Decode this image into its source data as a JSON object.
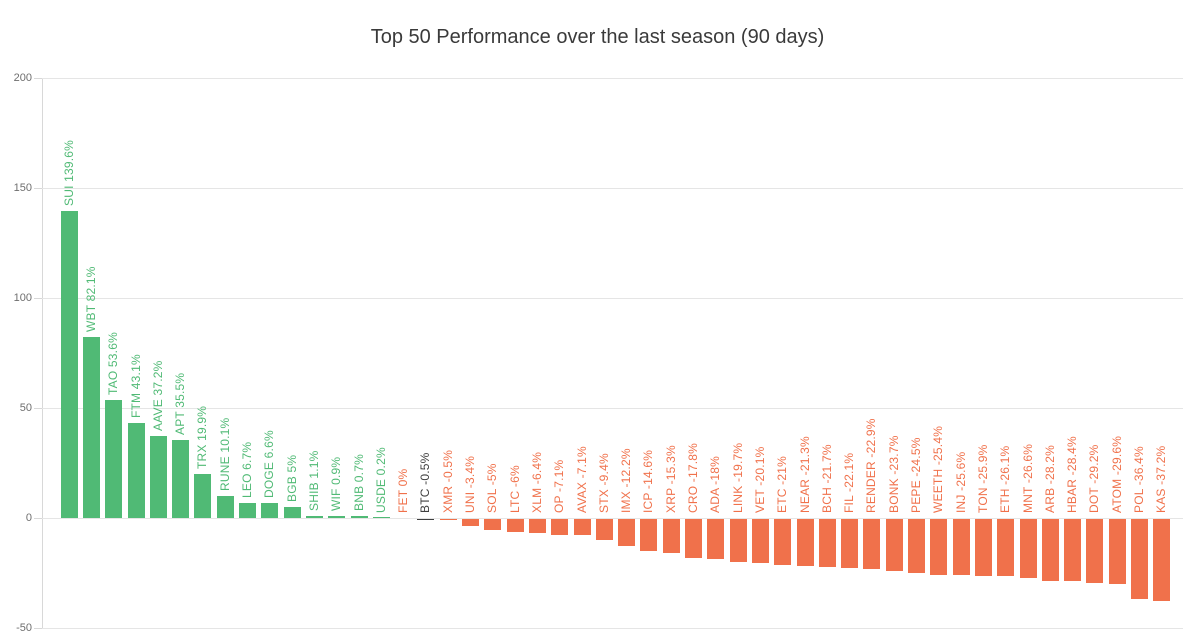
{
  "colors": {
    "positive": "#50ba75",
    "negative": "#f0714b",
    "btc": "#3f3f3f",
    "grid": "#e5e5e5",
    "axis": "#d8d8d8",
    "tick_text": "#6e6e6e",
    "title_text": "#3a3a3a"
  },
  "chart_data": {
    "type": "bar",
    "title": "Top 50 Performance over the last season (90 days)",
    "xlabel": "",
    "ylabel": "",
    "ylim": [
      -50,
      200
    ],
    "yticks": [
      200,
      150,
      100,
      50,
      0,
      -50
    ],
    "grid": true,
    "legend": "none",
    "value_unit": "%",
    "items": [
      {
        "symbol": "SUI",
        "value": 139.6,
        "label": "SUI 139.6%",
        "color": "positive"
      },
      {
        "symbol": "WBT",
        "value": 82.1,
        "label": "WBT 82.1%",
        "color": "positive"
      },
      {
        "symbol": "TAO",
        "value": 53.6,
        "label": "TAO 53.6%",
        "color": "positive"
      },
      {
        "symbol": "FTM",
        "value": 43.1,
        "label": "FTM 43.1%",
        "color": "positive"
      },
      {
        "symbol": "AAVE",
        "value": 37.2,
        "label": "AAVE 37.2%",
        "color": "positive"
      },
      {
        "symbol": "APT",
        "value": 35.5,
        "label": "APT 35.5%",
        "color": "positive"
      },
      {
        "symbol": "TRX",
        "value": 19.9,
        "label": "TRX 19.9%",
        "color": "positive"
      },
      {
        "symbol": "RUNE",
        "value": 10.1,
        "label": "RUNE 10.1%",
        "color": "positive"
      },
      {
        "symbol": "LEO",
        "value": 6.7,
        "label": "LEO 6.7%",
        "color": "positive"
      },
      {
        "symbol": "DOGE",
        "value": 6.6,
        "label": "DOGE 6.6%",
        "color": "positive"
      },
      {
        "symbol": "BGB",
        "value": 5,
        "label": "BGB 5%",
        "color": "positive"
      },
      {
        "symbol": "SHIB",
        "value": 1.1,
        "label": "SHIB 1.1%",
        "color": "positive"
      },
      {
        "symbol": "WIF",
        "value": 0.9,
        "label": "WIF 0.9%",
        "color": "positive"
      },
      {
        "symbol": "BNB",
        "value": 0.7,
        "label": "BNB 0.7%",
        "color": "positive"
      },
      {
        "symbol": "USDE",
        "value": 0.2,
        "label": "USDE 0.2%",
        "color": "positive"
      },
      {
        "symbol": "FET",
        "value": 0,
        "label": "FET 0%",
        "color": "negative"
      },
      {
        "symbol": "BTC",
        "value": -0.5,
        "label": "BTC -0.5%",
        "color": "btc"
      },
      {
        "symbol": "XMR",
        "value": -0.5,
        "label": "XMR -0.5%",
        "color": "negative"
      },
      {
        "symbol": "UNI",
        "value": -3.4,
        "label": "UNI -3.4%",
        "color": "negative"
      },
      {
        "symbol": "SOL",
        "value": -5,
        "label": "SOL -5%",
        "color": "negative"
      },
      {
        "symbol": "LTC",
        "value": -6,
        "label": "LTC -6%",
        "color": "negative"
      },
      {
        "symbol": "XLM",
        "value": -6.4,
        "label": "XLM -6.4%",
        "color": "negative"
      },
      {
        "symbol": "OP",
        "value": -7.1,
        "label": "OP -7.1%",
        "color": "negative"
      },
      {
        "symbol": "AVAX",
        "value": -7.1,
        "label": "AVAX -7.1%",
        "color": "negative"
      },
      {
        "symbol": "STX",
        "value": -9.4,
        "label": "STX -9.4%",
        "color": "negative"
      },
      {
        "symbol": "IMX",
        "value": -12.2,
        "label": "IMX -12.2%",
        "color": "negative"
      },
      {
        "symbol": "ICP",
        "value": -14.6,
        "label": "ICP -14.6%",
        "color": "negative"
      },
      {
        "symbol": "XRP",
        "value": -15.3,
        "label": "XRP -15.3%",
        "color": "negative"
      },
      {
        "symbol": "CRO",
        "value": -17.8,
        "label": "CRO -17.8%",
        "color": "negative"
      },
      {
        "symbol": "ADA",
        "value": -18,
        "label": "ADA -18%",
        "color": "negative"
      },
      {
        "symbol": "LINK",
        "value": -19.7,
        "label": "LINK -19.7%",
        "color": "negative"
      },
      {
        "symbol": "VET",
        "value": -20.1,
        "label": "VET -20.1%",
        "color": "negative"
      },
      {
        "symbol": "ETC",
        "value": -21,
        "label": "ETC -21%",
        "color": "negative"
      },
      {
        "symbol": "NEAR",
        "value": -21.3,
        "label": "NEAR -21.3%",
        "color": "negative"
      },
      {
        "symbol": "BCH",
        "value": -21.7,
        "label": "BCH -21.7%",
        "color": "negative"
      },
      {
        "symbol": "FIL",
        "value": -22.1,
        "label": "FIL -22.1%",
        "color": "negative"
      },
      {
        "symbol": "RENDER",
        "value": -22.9,
        "label": "RENDER -22.9%",
        "color": "negative"
      },
      {
        "symbol": "BONK",
        "value": -23.7,
        "label": "BONK -23.7%",
        "color": "negative"
      },
      {
        "symbol": "PEPE",
        "value": -24.5,
        "label": "PEPE -24.5%",
        "color": "negative"
      },
      {
        "symbol": "WEETH",
        "value": -25.4,
        "label": "WEETH -25.4%",
        "color": "negative"
      },
      {
        "symbol": "INJ",
        "value": -25.6,
        "label": "INJ -25.6%",
        "color": "negative"
      },
      {
        "symbol": "TON",
        "value": -25.9,
        "label": "TON -25.9%",
        "color": "negative"
      },
      {
        "symbol": "ETH",
        "value": -26.1,
        "label": "ETH -26.1%",
        "color": "negative"
      },
      {
        "symbol": "MNT",
        "value": -26.6,
        "label": "MNT -26.6%",
        "color": "negative"
      },
      {
        "symbol": "ARB",
        "value": -28.2,
        "label": "ARB -28.2%",
        "color": "negative"
      },
      {
        "symbol": "HBAR",
        "value": -28.4,
        "label": "HBAR -28.4%",
        "color": "negative"
      },
      {
        "symbol": "DOT",
        "value": -29.2,
        "label": "DOT -29.2%",
        "color": "negative"
      },
      {
        "symbol": "ATOM",
        "value": -29.6,
        "label": "ATOM -29.6%",
        "color": "negative"
      },
      {
        "symbol": "POL",
        "value": -36.4,
        "label": "POL -36.4%",
        "color": "negative"
      },
      {
        "symbol": "KAS",
        "value": -37.2,
        "label": "KAS -37.2%",
        "color": "negative"
      }
    ]
  }
}
